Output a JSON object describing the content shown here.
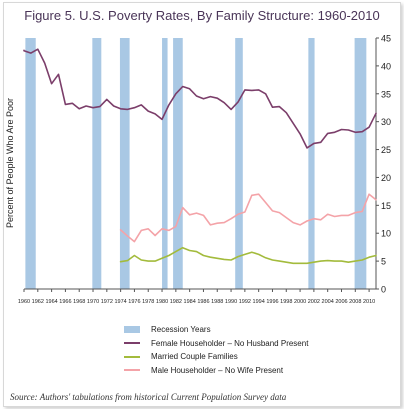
{
  "chart_data": {
    "type": "line",
    "title": "Figure 5. U.S. Poverty Rates, By Family Structure: 1960-2010",
    "ylabel": "Percent of People Who Are Poor",
    "xlabel": "",
    "xlim": [
      1960,
      2011
    ],
    "ylim": [
      0,
      45
    ],
    "y_ticks": [
      0,
      5,
      10,
      15,
      20,
      25,
      30,
      35,
      40,
      45
    ],
    "x_tick_labels": [
      "1960",
      "1962",
      "1964",
      "1966",
      "1968",
      "1970",
      "1972",
      "1974",
      "1976",
      "1978",
      "1980",
      "1982",
      "1984",
      "1986",
      "1988",
      "1990",
      "1992",
      "1994",
      "1996",
      "1998",
      "2000",
      "2002",
      "2004",
      "2006",
      "2008",
      "2010"
    ],
    "recession_label": "Recession Years",
    "recession_color": "#a9c8e4",
    "recessions": [
      [
        1960.2,
        1961.7
      ],
      [
        1969.9,
        1971.2
      ],
      [
        1973.9,
        1975.3
      ],
      [
        1980.0,
        1980.8
      ],
      [
        1981.6,
        1983.0
      ],
      [
        1990.6,
        1991.7
      ],
      [
        2001.2,
        2002.1
      ],
      [
        2007.9,
        2009.6
      ]
    ],
    "grid": false,
    "series": [
      {
        "name": "Female Householder – No Husband Present",
        "color": "#7b3e6a",
        "x": [
          1959,
          1960,
          1961,
          1962,
          1963,
          1964,
          1965,
          1966,
          1967,
          1968,
          1969,
          1970,
          1971,
          1972,
          1973,
          1974,
          1975,
          1976,
          1977,
          1978,
          1979,
          1980,
          1981,
          1982,
          1983,
          1984,
          1985,
          1986,
          1987,
          1988,
          1989,
          1990,
          1991,
          1992,
          1993,
          1994,
          1995,
          1996,
          1997,
          1998,
          1999,
          2000,
          2001,
          2002,
          2003,
          2004,
          2005,
          2006,
          2007,
          2008,
          2009,
          2010,
          2011
        ],
        "values": [
          42.8,
          42.7,
          42.3,
          43.0,
          40.5,
          36.8,
          38.5,
          33.1,
          33.3,
          32.3,
          32.8,
          32.5,
          32.7,
          34.0,
          32.8,
          32.3,
          32.2,
          32.5,
          33.0,
          31.9,
          31.4,
          30.4,
          33.0,
          35.0,
          36.3,
          35.9,
          34.6,
          34.1,
          34.5,
          34.2,
          33.4,
          32.2,
          33.5,
          35.7,
          35.6,
          35.7,
          35.0,
          32.6,
          32.7,
          31.6,
          29.7,
          27.8,
          25.3,
          26.1,
          26.3,
          27.9,
          28.1,
          28.6,
          28.5,
          28.1,
          28.2,
          29.0,
          31.5
        ]
      },
      {
        "name": "Married Couple Families",
        "color": "#a3bb3c",
        "x": [
          1974,
          1975,
          1976,
          1977,
          1978,
          1979,
          1980,
          1981,
          1982,
          1983,
          1984,
          1985,
          1986,
          1987,
          1988,
          1989,
          1990,
          1991,
          1992,
          1993,
          1994,
          1995,
          1996,
          1997,
          1998,
          1999,
          2000,
          2001,
          2002,
          2003,
          2004,
          2005,
          2006,
          2007,
          2008,
          2009,
          2010,
          2011
        ],
        "values": [
          4.9,
          5.1,
          6.0,
          5.2,
          5.0,
          5.0,
          5.5,
          6.0,
          6.7,
          7.4,
          6.9,
          6.7,
          6.0,
          5.7,
          5.5,
          5.3,
          5.2,
          5.8,
          6.2,
          6.6,
          6.2,
          5.6,
          5.2,
          5.0,
          4.8,
          4.6,
          4.6,
          4.6,
          4.8,
          5.0,
          5.1,
          5.0,
          5.0,
          4.8,
          5.0,
          5.2,
          5.7,
          6.0
        ]
      },
      {
        "name": "Male Householder – No Wife Present",
        "color": "#f4a3a8",
        "x": [
          1974,
          1975,
          1976,
          1977,
          1978,
          1979,
          1980,
          1981,
          1982,
          1983,
          1984,
          1985,
          1986,
          1987,
          1988,
          1989,
          1990,
          1991,
          1992,
          1993,
          1994,
          1995,
          1996,
          1997,
          1998,
          1999,
          2000,
          2001,
          2002,
          2003,
          2004,
          2005,
          2006,
          2007,
          2008,
          2009,
          2010,
          2011
        ],
        "values": [
          10.6,
          9.5,
          8.5,
          10.5,
          10.8,
          9.6,
          10.8,
          10.5,
          11.2,
          14.6,
          13.3,
          13.6,
          13.2,
          11.5,
          11.8,
          11.9,
          12.6,
          13.4,
          13.8,
          16.8,
          17.0,
          15.5,
          14.0,
          13.7,
          12.8,
          11.9,
          11.5,
          12.2,
          12.6,
          12.4,
          13.4,
          13.0,
          13.2,
          13.2,
          13.7,
          13.9,
          17.0,
          16.0
        ]
      }
    ],
    "legend_position": "bottom"
  },
  "source": "Source: Authors' tabulations from historical Current Population Survey data"
}
